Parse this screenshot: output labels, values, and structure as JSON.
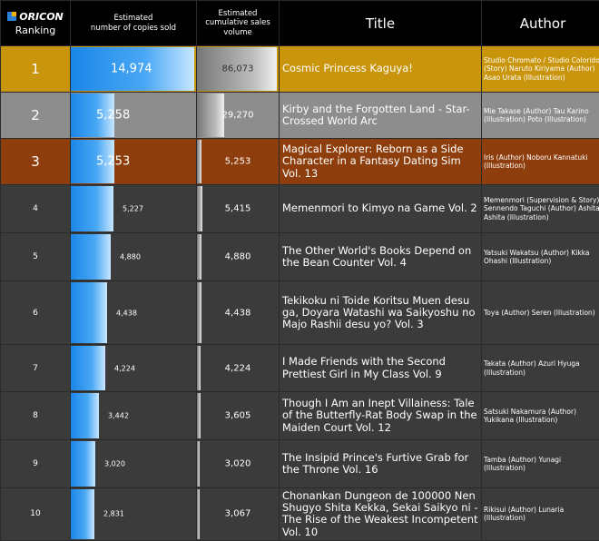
{
  "header": {
    "logo": "ORICON",
    "ranking": "Ranking",
    "sold_line1": "Estimated",
    "sold_line2": "number of copies sold",
    "cum_line1": "Estimated",
    "cum_line2": "cumulative sales",
    "cum_line3": "volume",
    "title": "Title",
    "author": "Author"
  },
  "colors": {
    "rank1_bg": "#c9950c",
    "rank2_bg": "#8d8d8d",
    "rank3_bg": "#8e3e0c",
    "row_bg": "#3b3b3b",
    "bar_blue": "#1a86e8",
    "header_bg": "#000000"
  },
  "chart_data": {
    "type": "table",
    "columns": [
      "Ranking",
      "Estimated number of copies sold",
      "Estimated cumulative sales volume",
      "Title",
      "Author"
    ],
    "rows": [
      {
        "rank": "1",
        "sold": 14974,
        "sold_text": "14,974",
        "cumulative": 86073,
        "cumulative_text": "86,073",
        "title": "Cosmic Princess Kaguya!",
        "author": "Studio Chromato / Studio Colorido (Story) Naruto Kiriyama (Author) Asao Urata (Illustration)"
      },
      {
        "rank": "2",
        "sold": 5258,
        "sold_text": "5,258",
        "cumulative": 29270,
        "cumulative_text": "29,270",
        "title": "Kirby and the Forgotten Land - Star-Crossed World Arc",
        "author": "Mie Takase (Author) Tau Karino (Illustration) Poto (Illustration)"
      },
      {
        "rank": "3",
        "sold": 5253,
        "sold_text": "5,253",
        "cumulative": 5253,
        "cumulative_text": "5,253",
        "title": "Magical Explorer: Reborn as a Side Character in a Fantasy Dating Sim Vol. 13",
        "author": "Iris (Author) Noboru Kannatuki (Illustration)"
      },
      {
        "rank": "4",
        "sold": 5227,
        "sold_text": "5,227",
        "cumulative": 5415,
        "cumulative_text": "5,415",
        "title": "Memenmori to Kimyo na Game Vol. 2",
        "author": "Memenmori (Supervision & Story) Sennendo Taguchi (Author) Ashita Ashita (Illustration)"
      },
      {
        "rank": "5",
        "sold": 4880,
        "sold_text": "4,880",
        "cumulative": 4880,
        "cumulative_text": "4,880",
        "title": "The Other World's Books Depend on the Bean Counter Vol. 4",
        "author": "Yatsuki Wakatsu (Author) Kikka Ohashi (Illustration)"
      },
      {
        "rank": "6",
        "sold": 4438,
        "sold_text": "4,438",
        "cumulative": 4438,
        "cumulative_text": "4,438",
        "title": "Tekikoku ni Toide Koritsu Muen desu ga, Doyara Watashi wa Saikyoshu no Majo Rashii desu yo? Vol. 3",
        "author": "Toya (Author) Seren (Illustration)"
      },
      {
        "rank": "7",
        "sold": 4224,
        "sold_text": "4,224",
        "cumulative": 4224,
        "cumulative_text": "4,224",
        "title": "I Made Friends with the Second Prettiest Girl in My Class Vol. 9",
        "author": "Takata (Author) Azuri Hyuga (Illustration)"
      },
      {
        "rank": "8",
        "sold": 3442,
        "sold_text": "3,442",
        "cumulative": 3605,
        "cumulative_text": "3,605",
        "title": "Though I Am an Inept Villainess: Tale of the Butterfly-Rat Body Swap in the Maiden Court Vol. 12",
        "author": "Satsuki Nakamura (Author) Yukikana (Illustration)"
      },
      {
        "rank": "9",
        "sold": 3020,
        "sold_text": "3,020",
        "cumulative": 3020,
        "cumulative_text": "3,020",
        "title": "The Insipid Prince's Furtive Grab for the Throne Vol. 16",
        "author": "Tamba (Author) Yunagi (Illustration)"
      },
      {
        "rank": "10",
        "sold": 2831,
        "sold_text": "2,831",
        "cumulative": 3067,
        "cumulative_text": "3,067",
        "title": "Chonankan Dungeon de 100000 Nen Shugyo Shita Kekka, Sekai Saikyo ni - The Rise of the Weakest Incompetent Vol. 10",
        "author": "Rikisui (Author) Lunaria (Illustration)"
      }
    ]
  }
}
